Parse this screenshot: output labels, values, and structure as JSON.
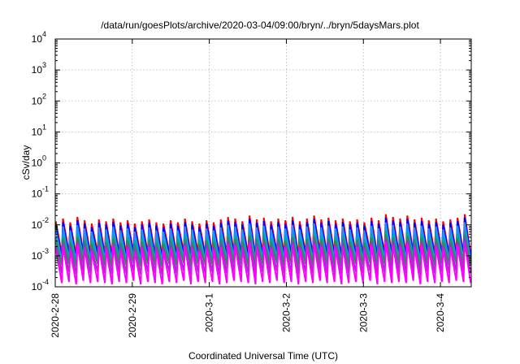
{
  "title": "/data/run/goesPlots/archive/2020-03-04/09:00/bryn/../bryn/5daysMars.plot",
  "chart_data": {
    "type": "line",
    "title": "/data/run/goesPlots/archive/2020-03-04/09:00/bryn/../bryn/5daysMars.plot",
    "xlabel": "Coordinated Universal Time (UTC)",
    "ylabel": "cSv/day",
    "y_scale": "log",
    "ylim": [
      0.0001,
      10000
    ],
    "y_ticks": [
      {
        "exp": "-4",
        "value": 0.0001
      },
      {
        "exp": "-3",
        "value": 0.001
      },
      {
        "exp": "-2",
        "value": 0.01
      },
      {
        "exp": "-1",
        "value": 0.1
      },
      {
        "exp": "0",
        "value": 1
      },
      {
        "exp": "1",
        "value": 10
      },
      {
        "exp": "2",
        "value": 100
      },
      {
        "exp": "3",
        "value": 1000
      },
      {
        "exp": "4",
        "value": 10000
      }
    ],
    "y_tick_base": "10",
    "x_ticks": [
      "2020-2-28",
      "2020-2-29",
      "2020-3-1",
      "2020-3-2",
      "2020-3-3",
      "2020-3-4"
    ],
    "x_tick_days": [
      0,
      1,
      2,
      3,
      4,
      5
    ],
    "xlim_days": [
      0,
      5.4
    ],
    "grid": true,
    "legend": "none",
    "pattern": {
      "cycles": 58,
      "peaks": [
        0.013,
        0.016,
        0.012,
        0.018,
        0.014,
        0.011,
        0.015,
        0.013,
        0.016,
        0.012,
        0.014,
        0.011,
        0.013,
        0.015,
        0.012,
        0.011,
        0.014,
        0.012,
        0.016,
        0.013,
        0.011,
        0.014,
        0.012,
        0.015,
        0.018,
        0.016,
        0.013,
        0.02,
        0.015,
        0.017,
        0.013,
        0.016,
        0.014,
        0.018,
        0.013,
        0.016,
        0.02,
        0.015,
        0.017,
        0.014,
        0.016,
        0.013,
        0.015,
        0.012,
        0.017,
        0.014,
        0.022,
        0.018,
        0.016,
        0.02,
        0.015,
        0.017,
        0.014,
        0.016,
        0.013,
        0.015,
        0.017,
        0.022
      ],
      "troughs": [
        0.0011,
        0.0012,
        0.001,
        0.0013,
        0.0011,
        0.0012,
        0.0011,
        0.001,
        0.0012,
        0.0011,
        0.0013,
        0.001,
        0.0012,
        0.0011,
        0.001,
        0.0012,
        0.0011,
        0.0013,
        0.001,
        0.0012,
        0.0011,
        0.0012,
        0.001,
        0.0011,
        0.0013,
        0.0012,
        0.0011,
        0.001,
        0.0012,
        0.0011,
        0.0013,
        0.0011,
        0.0012,
        0.001,
        0.0012,
        0.0011,
        0.0013,
        0.0011,
        0.0012,
        0.001,
        0.0011,
        0.0012,
        0.0011,
        0.0013,
        0.001,
        0.0012,
        0.0011,
        0.0012,
        0.0011,
        0.0013,
        0.001,
        0.0012,
        0.0011,
        0.0012,
        0.0011,
        0.0013,
        0.0012,
        0.0011
      ]
    },
    "series": [
      {
        "color": "#ff0000",
        "scale": 1.0,
        "trough_scale": 1.0
      },
      {
        "color": "#0000ff",
        "scale": 0.78,
        "trough_scale": 0.8
      },
      {
        "color": "#1e90ff",
        "scale": 0.55,
        "trough_scale": 0.6
      },
      {
        "color": "#00aaaa",
        "scale": 0.3,
        "trough_scale": 0.55
      },
      {
        "color": "#2e8b57",
        "scale": 0.22,
        "trough_scale": 0.45
      },
      {
        "color": "#9932cc",
        "scale": 0.16,
        "trough_scale": 0.25
      },
      {
        "color": "#ff00ff",
        "scale": 0.13,
        "trough_scale": 0.12
      }
    ]
  }
}
